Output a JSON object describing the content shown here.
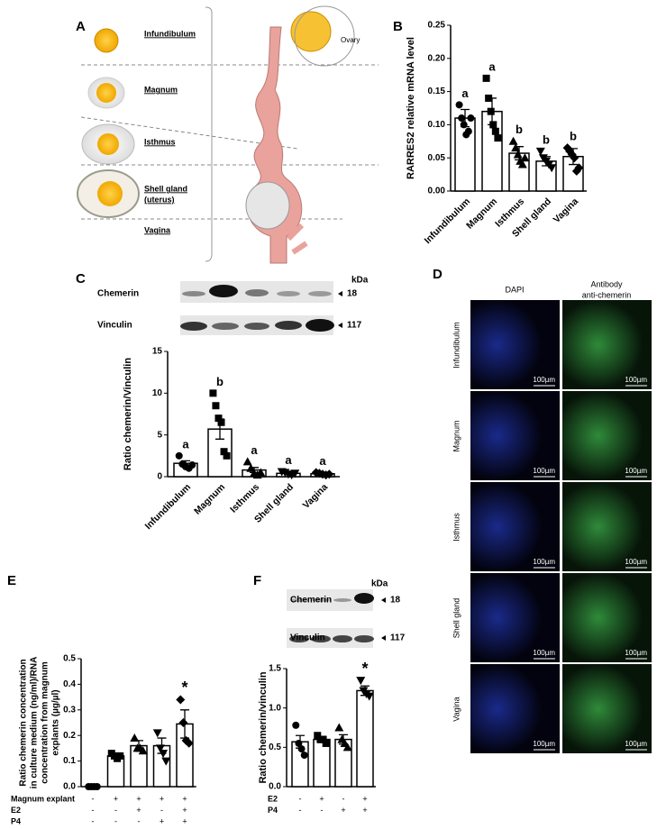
{
  "panel_a": {
    "label": "A",
    "segments": [
      [
        "Infundibulum"
      ],
      [
        "Magnum"
      ],
      [
        "Isthmus"
      ],
      [
        "Shell gland",
        "(uterus)"
      ],
      [
        "Vagina"
      ]
    ],
    "ovary": "Ovary"
  },
  "blot_c": {
    "rows": [
      "Chemerin",
      "Vinculin"
    ],
    "unit": "kDa",
    "sizes": [
      "18",
      "117"
    ]
  },
  "panel_d": {
    "label": "D",
    "columns": [
      [
        "DAPI"
      ],
      [
        "Antibody",
        "anti-chemerin"
      ]
    ],
    "rows": [
      "Infundibulum",
      "Magnum",
      "Isthmus",
      "Shell gland",
      "Vagina"
    ],
    "scale": "100µm"
  },
  "blot_f": {
    "rows": [
      "Chemerin",
      "Vinculin"
    ],
    "unit": "kDa",
    "sizes": [
      "18",
      "117"
    ]
  },
  "chart_data": [
    {
      "type": "bar",
      "panel": "B",
      "ylabel": "RARRES2 relative mRNA level",
      "categories": [
        "Infundibulum",
        "Magnum",
        "Isthmus",
        "Shell gland",
        "Vagina"
      ],
      "values": [
        0.11,
        0.12,
        0.057,
        0.045,
        0.052
      ],
      "errors": [
        0.013,
        0.02,
        0.01,
        0.007,
        0.012
      ],
      "letters": [
        "a",
        "a",
        "b",
        "b",
        "b"
      ],
      "points": [
        [
          0.13,
          0.11,
          0.1,
          0.085,
          0.09,
          0.11
        ],
        [
          0.17,
          0.14,
          0.12,
          0.1,
          0.09,
          0.08
        ],
        [
          0.075,
          0.065,
          0.055,
          0.045,
          0.04,
          0.05
        ],
        [
          0.06,
          0.05,
          0.045,
          0.04,
          0.035
        ],
        [
          0.065,
          0.06,
          0.055,
          0.05,
          0.03,
          0.035
        ]
      ],
      "ylim": [
        0,
        0.25
      ],
      "yticks": [
        {
          "value": 0,
          "label": "0.00"
        },
        0.05,
        {
          "value": 0.1,
          "label": "0.10"
        },
        0.15,
        {
          "value": 0.2,
          "label": "0.20"
        },
        0.25
      ],
      "color": "#ffffff"
    },
    {
      "type": "bar",
      "panel": "C",
      "ylabel": "Ratio chemerin/Vinculin",
      "categories": [
        "Infundibulum",
        "Magnum",
        "Isthmus",
        "Shell gland",
        "Vagina"
      ],
      "values": [
        1.6,
        5.7,
        0.8,
        0.4,
        0.35
      ],
      "errors": [
        0.3,
        1.2,
        0.3,
        0.1,
        0.1
      ],
      "letters": [
        "a",
        "b",
        "a",
        "a",
        "a"
      ],
      "points": [
        [
          2.5,
          1.5,
          1.2,
          1.0,
          1.4
        ],
        [
          10,
          8.5,
          7,
          6.5,
          3,
          2.5
        ],
        [
          1.8,
          1,
          0.4,
          0.2,
          0.5
        ],
        [
          0.6,
          0.5,
          0.3,
          0.2,
          0.4
        ],
        [
          0.5,
          0.4,
          0.3,
          0.2,
          0.3
        ]
      ],
      "ylim": [
        0,
        15
      ],
      "yticks": [
        0,
        5,
        10,
        15
      ],
      "color": "#ffffff"
    },
    {
      "type": "bar",
      "panel": "E",
      "ylabel": [
        "Ratio chemerin concentration",
        "in culture medium (ng/ml)/RNA",
        "concentration from magnum",
        "explants (µg/µl)"
      ],
      "conditions": [
        {
          "name": "Magnum explant",
          "signs": [
            "-",
            "+",
            "+",
            "+",
            "+"
          ]
        },
        {
          "name": "E2",
          "signs": [
            "-",
            "-",
            "+",
            "-",
            "+"
          ]
        },
        {
          "name": "P4",
          "signs": [
            "-",
            "-",
            "-",
            "+",
            "+"
          ]
        }
      ],
      "values": [
        0,
        0.12,
        0.16,
        0.16,
        0.245
      ],
      "errors": [
        0.002,
        0.01,
        0.02,
        0.03,
        0.055
      ],
      "annotations": [
        null,
        null,
        null,
        null,
        "*"
      ],
      "points": [
        [
          0,
          0,
          0,
          0
        ],
        [
          0.13,
          0.12,
          0.11,
          0.12
        ],
        [
          0.19,
          0.15,
          0.15,
          0.14
        ],
        [
          0.21,
          0.15,
          0.13,
          0.1
        ],
        [
          0.34,
          0.25,
          0.18,
          0.17
        ]
      ],
      "ylim": [
        0,
        0.5
      ],
      "yticks": [
        {
          "value": 0,
          "label": "0.0"
        },
        0.1,
        0.2,
        0.3,
        0.4,
        0.5
      ],
      "color": "#ffffff"
    },
    {
      "type": "bar",
      "panel": "F",
      "ylabel": "Ratio chemerin/vinculin",
      "conditions": [
        {
          "name": "E2",
          "signs": [
            "-",
            "+",
            "-",
            "+"
          ]
        },
        {
          "name": "P4",
          "signs": [
            "-",
            "-",
            "+",
            "+"
          ]
        }
      ],
      "values": [
        0.57,
        0.6,
        0.6,
        1.22
      ],
      "errors": [
        0.08,
        0.04,
        0.06,
        0.06
      ],
      "annotations": [
        null,
        null,
        null,
        "*"
      ],
      "points": [
        [
          0.78,
          0.55,
          0.48,
          0.4
        ],
        [
          0.65,
          0.6,
          0.6,
          0.55
        ],
        [
          0.75,
          0.6,
          0.55,
          0.5
        ],
        [
          1.35,
          1.22,
          1.18,
          1.15
        ]
      ],
      "ylim": [
        0,
        1.5
      ],
      "yticks": [
        {
          "value": 0,
          "label": "0.0"
        },
        {
          "value": 0.5,
          "label": "0.5"
        },
        {
          "value": 1,
          "label": "1.0"
        },
        {
          "value": 1.5,
          "label": "1.5"
        }
      ],
      "color": "#ffffff"
    }
  ]
}
